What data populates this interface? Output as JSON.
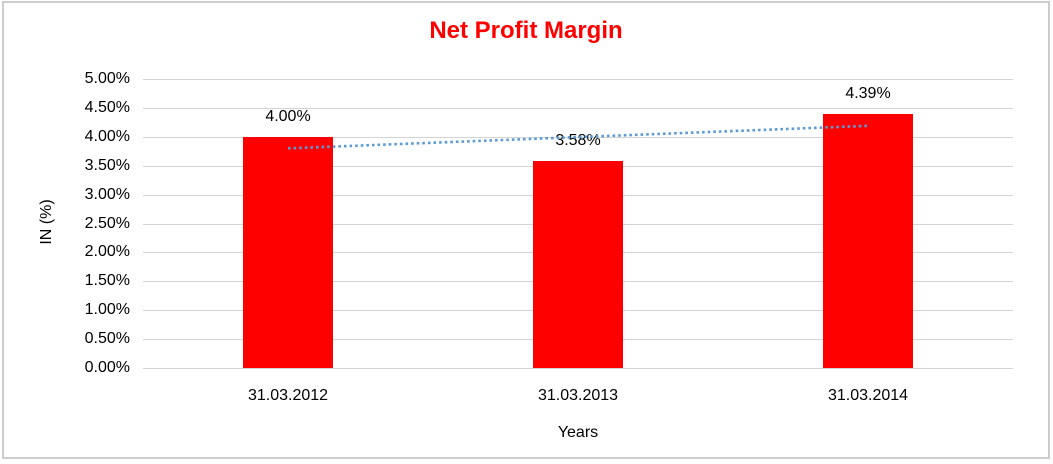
{
  "chart_data": {
    "type": "bar",
    "title": "Net Profit Margin",
    "categories": [
      "31.03.2012",
      "31.03.2013",
      "31.03.2014"
    ],
    "values": [
      4.0,
      3.58,
      4.39
    ],
    "data_labels": [
      "4.00%",
      "3.58%",
      "4.39%"
    ],
    "xlabel": "Years",
    "ylabel": "IN (%)",
    "ylim": [
      0,
      5
    ],
    "ytick_step": 0.5,
    "ytick_labels": [
      "0.00%",
      "0.50%",
      "1.00%",
      "1.50%",
      "2.00%",
      "2.50%",
      "3.00%",
      "3.50%",
      "4.00%",
      "4.50%",
      "5.00%"
    ],
    "grid": true,
    "legend": "none",
    "colors": {
      "title": "#ff0000",
      "bar": "#ff0000",
      "gridline": "#d4d4d4",
      "trendline": "#5b9bd5",
      "text": "#000000"
    },
    "trendline": {
      "type": "linear",
      "style": "dotted",
      "start_value": 3.8,
      "end_value": 4.19
    }
  }
}
